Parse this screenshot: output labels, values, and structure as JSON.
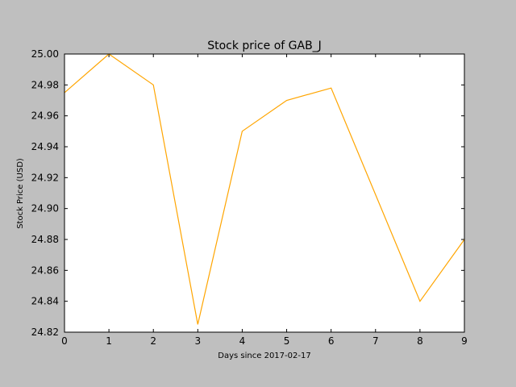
{
  "chart_data": {
    "type": "line",
    "title": "Stock price of GAB_J",
    "xlabel": "Days since 2017-02-17",
    "ylabel": "Stock Price (USD)",
    "xlim": [
      0,
      9
    ],
    "ylim": [
      24.82,
      25.0
    ],
    "xticks": [
      0,
      1,
      2,
      3,
      4,
      5,
      6,
      7,
      8,
      9
    ],
    "yticks": [
      "24.82",
      "24.84",
      "24.86",
      "24.88",
      "24.90",
      "24.92",
      "24.94",
      "24.96",
      "24.98",
      "25.00"
    ],
    "grid": false,
    "series": [
      {
        "color": "#ffa500",
        "x": [
          0,
          1,
          2,
          3,
          4,
          5,
          6,
          8,
          9
        ],
        "y": [
          24.975,
          25.0,
          24.98,
          24.825,
          24.95,
          24.97,
          24.978,
          24.84,
          24.88
        ]
      }
    ]
  },
  "colors": {
    "figure_background": "#bfbfbf",
    "plot_background": "#ffffff",
    "line": "#ffa500"
  }
}
